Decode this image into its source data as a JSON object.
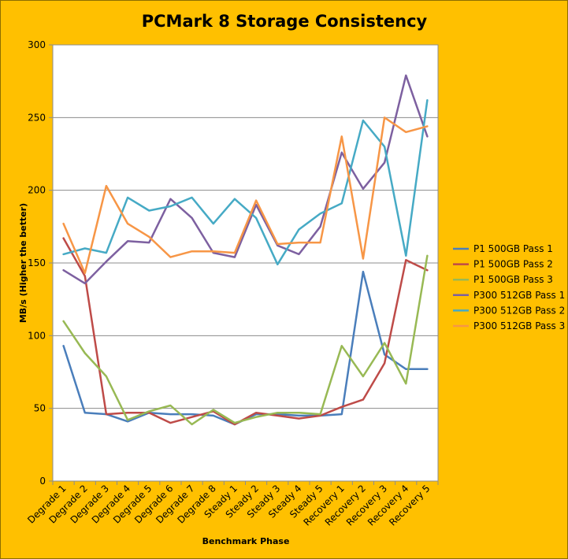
{
  "chart_data": {
    "type": "line",
    "title": "PCMark 8 Storage Consistency",
    "xlabel": "Benchmark Phase",
    "ylabel": "MB/s (Higher the better)",
    "ylim": [
      0,
      300
    ],
    "yticks": [
      0,
      50,
      100,
      150,
      200,
      250,
      300
    ],
    "grid": true,
    "legend_position": "right",
    "categories": [
      "Degrade 1",
      "Degrade 2",
      "Degrade 3",
      "Degrade 4",
      "Degrade 5",
      "Degrade 6",
      "Degrade 7",
      "Degrade 8",
      "Steady 1",
      "Steady 2",
      "Steady 3",
      "Steady 4",
      "Steady 5",
      "Recovery 1",
      "Recovery 2",
      "Recovery 3",
      "Recovery 4",
      "Recovery 5"
    ],
    "series": [
      {
        "name": "P1 500GB Pass 1",
        "color": "#4A7EBB",
        "values": [
          93,
          47,
          46,
          41,
          47,
          46,
          46,
          45,
          39,
          46,
          46,
          45,
          45,
          46,
          144,
          87,
          77,
          77
        ]
      },
      {
        "name": "P1 500GB Pass 2",
        "color": "#BE4B48",
        "values": [
          167,
          141,
          46,
          47,
          47,
          40,
          44,
          48,
          39,
          47,
          45,
          43,
          45,
          51,
          56,
          81,
          152,
          145
        ]
      },
      {
        "name": "P1 500GB Pass 3",
        "color": "#98B954",
        "values": [
          110,
          88,
          72,
          42,
          48,
          52,
          39,
          49,
          40,
          44,
          47,
          47,
          46,
          93,
          72,
          95,
          67,
          155
        ]
      },
      {
        "name": "P300 512GB Pass 1",
        "color": "#7D60A0",
        "values": [
          145,
          136,
          151,
          165,
          164,
          194,
          181,
          157,
          154,
          190,
          162,
          156,
          175,
          226,
          201,
          219,
          279,
          237
        ]
      },
      {
        "name": "P300 512GB Pass 2",
        "color": "#46AAC5",
        "values": [
          156,
          160,
          157,
          195,
          186,
          189,
          195,
          177,
          194,
          181,
          149,
          173,
          184,
          191,
          248,
          230,
          155,
          262
        ]
      },
      {
        "name": "P300 512GB Pass 3",
        "color": "#F79646",
        "values": [
          177,
          143,
          203,
          177,
          168,
          154,
          158,
          158,
          157,
          193,
          163,
          164,
          164,
          237,
          153,
          250,
          240,
          244
        ]
      }
    ]
  }
}
